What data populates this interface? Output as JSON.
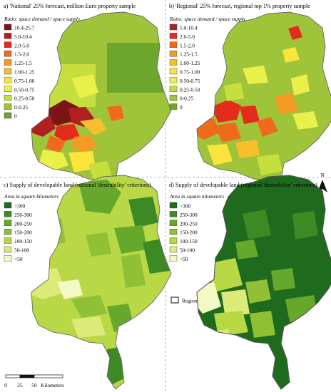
{
  "panels": [
    {
      "id": "a",
      "title": "a) 'National' 25% forecast, million Euro property sample",
      "legend_title": "Ratio: space demand / space supply",
      "legend": [
        {
          "label": "10.4-25.7",
          "color": "#7b1414"
        },
        {
          "label": "5.0-10.4",
          "color": "#b02020"
        },
        {
          "label": "2.0-5.0",
          "color": "#e32c1c"
        },
        {
          "label": "1.5-2.0",
          "color": "#f06a1d"
        },
        {
          "label": "1.25-1.5",
          "color": "#f59b25"
        },
        {
          "label": "1.00-1.25",
          "color": "#f8bf2c"
        },
        {
          "label": "0.75-1.00",
          "color": "#fbe43b"
        },
        {
          "label": "0.50-0.75",
          "color": "#eaf04a"
        },
        {
          "label": "0.25-0.50",
          "color": "#c6df3f"
        },
        {
          "label": "0-0.25",
          "color": "#9fc43a"
        },
        {
          "label": "0",
          "color": "#6da52d"
        }
      ]
    },
    {
      "id": "b",
      "title": "b) 'Regional' 25% forecast, regional top 1% property sample",
      "legend_title": "Ratio: space demand / space supply",
      "legend": [
        {
          "label": "5.0-10.4",
          "color": "#b02020"
        },
        {
          "label": "2.0-5.0",
          "color": "#e32c1c"
        },
        {
          "label": "1.5-2.0",
          "color": "#f06a1d"
        },
        {
          "label": "1.25-1.5",
          "color": "#f59b25"
        },
        {
          "label": "1.00-1.25",
          "color": "#f8bf2c"
        },
        {
          "label": "0.75-1.00",
          "color": "#fbe43b"
        },
        {
          "label": "0.50-0.75",
          "color": "#eaf04a"
        },
        {
          "label": "0.25-0.50",
          "color": "#c6df3f"
        },
        {
          "label": "0-0.25",
          "color": "#9fc43a"
        },
        {
          "label": "0",
          "color": "#6da52d"
        }
      ]
    },
    {
      "id": "c",
      "title": "c) Supply of developable land (national 'desirability' criterions)",
      "legend_title": "Area in square kilometers",
      "legend": [
        {
          "label": ">300",
          "color": "#1e6b1e"
        },
        {
          "label": "250-300",
          "color": "#3d8a25"
        },
        {
          "label": "200-250",
          "color": "#66a82c"
        },
        {
          "label": "150-200",
          "color": "#8fc036"
        },
        {
          "label": "100-150",
          "color": "#b9d846"
        },
        {
          "label": "50-100",
          "color": "#dcea78"
        },
        {
          "label": "<50",
          "color": "#f4f8c4"
        }
      ]
    },
    {
      "id": "d",
      "title": "d) Supply of developable land (regional 'desirability' criterions)",
      "legend_title": "Area in square kilometers",
      "legend": [
        {
          "label": ">300",
          "color": "#1e6b1e"
        },
        {
          "label": "250-300",
          "color": "#3d8a25"
        },
        {
          "label": "200-250",
          "color": "#66a82c"
        },
        {
          "label": "150-200",
          "color": "#8fc036"
        },
        {
          "label": "100-150",
          "color": "#b9d846"
        },
        {
          "label": "50-100",
          "color": "#dcea78"
        },
        {
          "label": "<50",
          "color": "#f4f8c4"
        }
      ],
      "region_legend": "Region"
    }
  ],
  "scale_bar": {
    "ticks": [
      "0",
      "25",
      "50"
    ],
    "unit": "Kilometers"
  },
  "north_label": "N",
  "colors": {
    "border": "#666666",
    "divider": "#999999"
  }
}
